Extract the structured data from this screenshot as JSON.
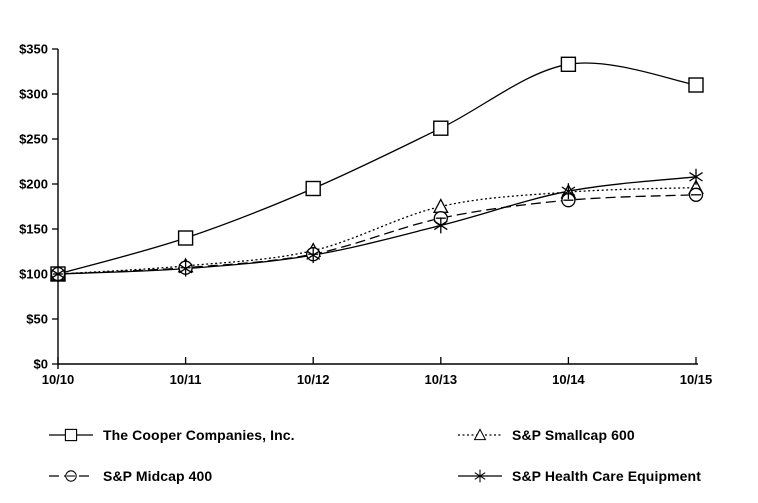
{
  "figure": {
    "background": "#ffffff",
    "ink": "#000000"
  },
  "chart_data": {
    "type": "line",
    "title": "",
    "xlabel": "",
    "ylabel": "",
    "x_labels": [
      "10/10",
      "10/11",
      "10/12",
      "10/13",
      "10/14",
      "10/15"
    ],
    "y_tick_values": [
      0,
      50,
      100,
      150,
      200,
      250,
      300,
      350
    ],
    "y_tick_labels": [
      "$0",
      "$50",
      "$100",
      "$150",
      "$200",
      "$250",
      "$300",
      "$350"
    ],
    "ylim": [
      0,
      350
    ],
    "grid": false,
    "legend_position": "bottom",
    "series": [
      {
        "name": "The Cooper Companies, Inc.",
        "marker": "square",
        "line_style": "solid",
        "values": [
          100,
          140,
          195,
          262,
          333,
          310
        ]
      },
      {
        "name": "S&P Smallcap 600",
        "marker": "triangle",
        "line_style": "dotted",
        "values": [
          100,
          109,
          126,
          175,
          191,
          196
        ]
      },
      {
        "name": "S&P Midcap 400",
        "marker": "circle-dash",
        "line_style": "dashed",
        "values": [
          100,
          107,
          122,
          162,
          182,
          188
        ]
      },
      {
        "name": "S&P Health Care Equipment",
        "marker": "asterisk",
        "line_style": "solid",
        "values": [
          100,
          106,
          121,
          154,
          192,
          208
        ]
      }
    ]
  }
}
